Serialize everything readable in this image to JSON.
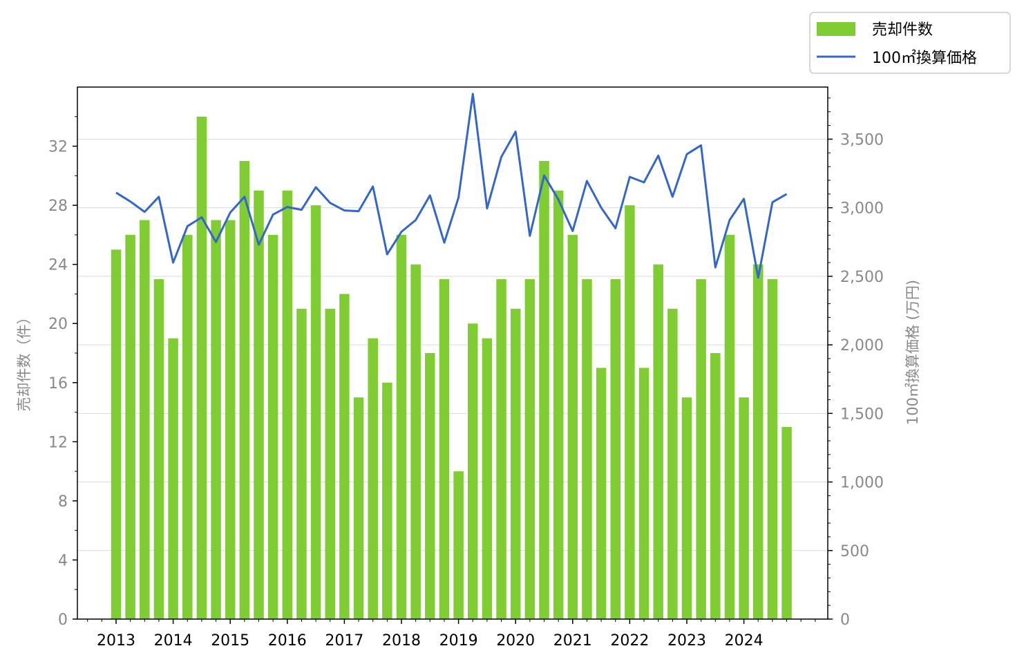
{
  "chart_data": {
    "type": "bar+line",
    "x": [
      "2013Q1",
      "2013Q2",
      "2013Q3",
      "2013Q4",
      "2014Q1",
      "2014Q2",
      "2014Q3",
      "2014Q4",
      "2015Q1",
      "2015Q2",
      "2015Q3",
      "2015Q4",
      "2016Q1",
      "2016Q2",
      "2016Q3",
      "2016Q4",
      "2017Q1",
      "2017Q2",
      "2017Q3",
      "2017Q4",
      "2018Q1",
      "2018Q2",
      "2018Q3",
      "2018Q4",
      "2019Q1",
      "2019Q2",
      "2019Q3",
      "2019Q4",
      "2020Q1",
      "2020Q2",
      "2020Q3",
      "2020Q4",
      "2021Q1",
      "2021Q2",
      "2021Q3",
      "2021Q4",
      "2022Q1",
      "2022Q2",
      "2022Q3",
      "2022Q4",
      "2023Q1",
      "2023Q2",
      "2023Q3",
      "2023Q4",
      "2024Q1",
      "2024Q2",
      "2024Q3",
      "2024Q4"
    ],
    "x_tick_labels": [
      "2013",
      "2014",
      "2015",
      "2016",
      "2017",
      "2018",
      "2019",
      "2020",
      "2021",
      "2022",
      "2023",
      "2024"
    ],
    "series": [
      {
        "name": "売却件数",
        "type": "bar",
        "axis": "left",
        "color": "#7fcc33",
        "values": [
          25,
          26,
          27,
          23,
          19,
          26,
          34,
          27,
          27,
          31,
          29,
          26,
          29,
          21,
          28,
          21,
          22,
          15,
          19,
          16,
          26,
          24,
          18,
          23,
          10,
          20,
          19,
          23,
          21,
          23,
          31,
          29,
          26,
          23,
          17,
          23,
          28,
          17,
          24,
          21,
          15,
          23,
          18,
          26,
          15,
          24,
          23,
          13
        ]
      },
      {
        "name": "100㎡換算価格",
        "type": "line",
        "axis": "right",
        "color": "#3366cc",
        "values": [
          3110,
          3045,
          2970,
          3080,
          2600,
          2865,
          2930,
          2750,
          2965,
          3080,
          2730,
          2950,
          3005,
          2985,
          3150,
          3035,
          2980,
          2975,
          3155,
          2660,
          2825,
          2910,
          3090,
          2745,
          3075,
          3830,
          2995,
          3370,
          3555,
          2795,
          3235,
          3060,
          2830,
          3195,
          3000,
          2850,
          3225,
          3185,
          3380,
          3080,
          3390,
          3455,
          2565,
          2910,
          3065,
          2490,
          3040,
          3100
        ]
      }
    ],
    "y_left": {
      "label": "売却件数（件）",
      "ylim": [
        0,
        36
      ],
      "ticks": [
        "0",
        "4",
        "8",
        "12",
        "16",
        "20",
        "24",
        "28",
        "32"
      ],
      "tick_values": [
        0,
        4,
        8,
        12,
        16,
        20,
        24,
        28,
        32
      ]
    },
    "y_right": {
      "label": "100㎡換算価格 (万円)",
      "ylim": [
        0,
        3880
      ],
      "ticks": [
        "0",
        "500",
        "1,000",
        "1,500",
        "2,000",
        "2,500",
        "3,000",
        "3,500"
      ],
      "tick_values": [
        0,
        500,
        1000,
        1500,
        2000,
        2500,
        3000,
        3500
      ]
    },
    "grid": true,
    "legend": {
      "placement": "top-right-outside",
      "entries": [
        "売却件数",
        "100㎡換算価格"
      ]
    }
  }
}
